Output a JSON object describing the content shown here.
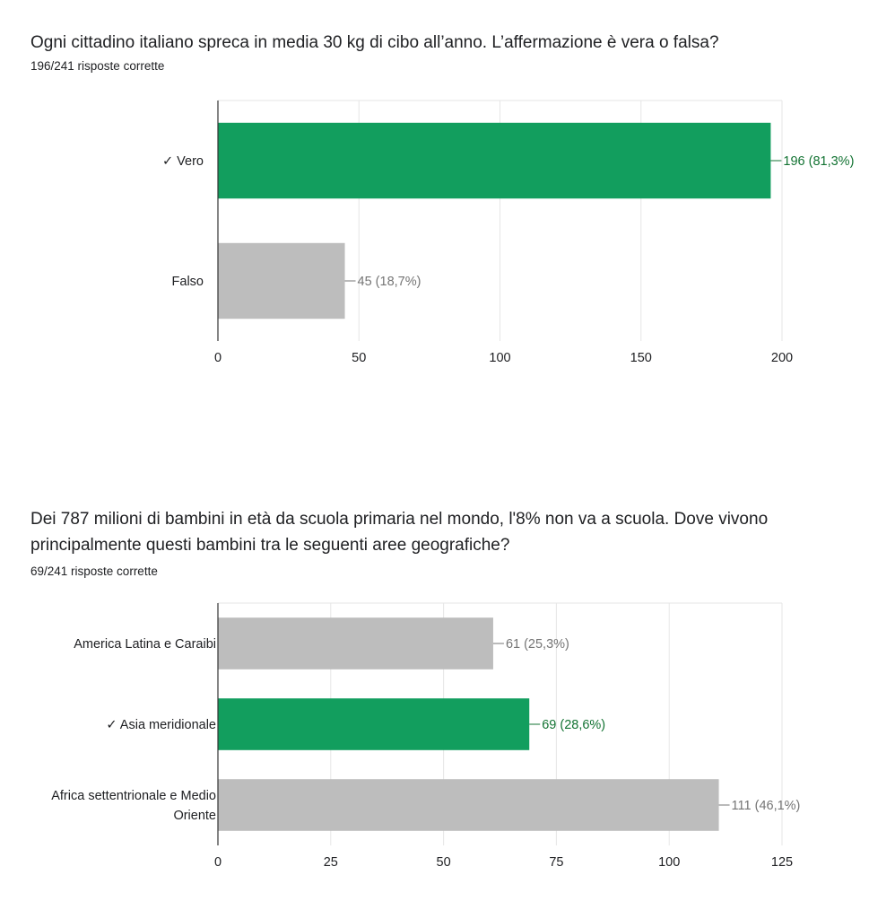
{
  "questions": [
    {
      "title": "Ogni cittadino italiano spreca in media 30 kg di cibo all’anno. L’affermazione è vera o falsa?",
      "subtitle": "196/241 risposte corrette"
    },
    {
      "title": "Dei 787 milioni di bambini in età da scuola primaria nel mondo, l'8% non va a scuola. Dove vivono principalmente questi bambini tra le seguenti aree geografiche?",
      "subtitle": "69/241 risposte corrette"
    }
  ],
  "colors": {
    "correct": "#129e5e",
    "wrong": "#bdbdbd",
    "correct_label": "#137333",
    "wrong_label": "#757575",
    "grid": "#e6e6e6",
    "axis": "#333333"
  },
  "chart_data": [
    {
      "type": "bar",
      "orientation": "horizontal",
      "categories": [
        "✓ Vero",
        "Falso"
      ],
      "values": [
        196,
        45
      ],
      "data_labels": [
        "196 (81,3%)",
        "45 (18,7%)"
      ],
      "correct": [
        true,
        false
      ],
      "xlim": [
        0,
        200
      ],
      "xticks": [
        0,
        50,
        100,
        150,
        200
      ],
      "grid": true,
      "legend": "none"
    },
    {
      "type": "bar",
      "orientation": "horizontal",
      "categories": [
        "America Latina e Caraibi",
        "✓ Asia meridionale",
        "Africa settentrionale e Medio Oriente"
      ],
      "values": [
        61,
        69,
        111
      ],
      "data_labels": [
        "61 (25,3%)",
        "69 (28,6%)",
        "111 (46,1%)"
      ],
      "correct": [
        false,
        true,
        false
      ],
      "xlim": [
        0,
        125
      ],
      "xticks": [
        0,
        25,
        50,
        75,
        100,
        125
      ],
      "grid": true,
      "legend": "none"
    }
  ]
}
